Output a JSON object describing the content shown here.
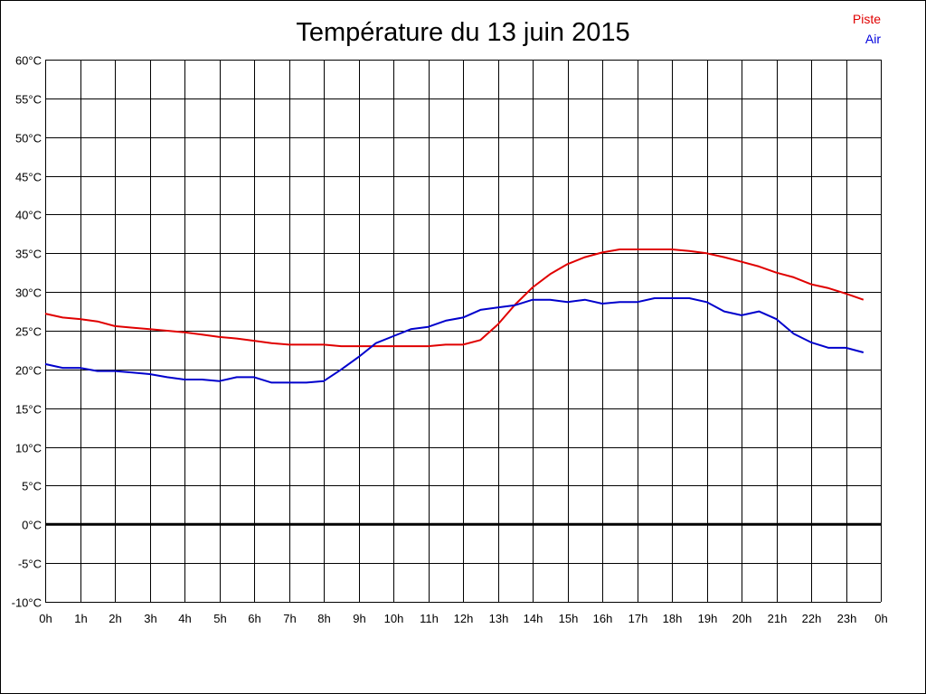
{
  "chart_data": {
    "type": "line",
    "title": "Température du 13 juin 2015",
    "xlabel": "",
    "ylabel": "",
    "x_tick_labels": [
      "0h",
      "1h",
      "2h",
      "3h",
      "4h",
      "5h",
      "6h",
      "7h",
      "8h",
      "9h",
      "10h",
      "11h",
      "12h",
      "13h",
      "14h",
      "15h",
      "16h",
      "17h",
      "18h",
      "19h",
      "20h",
      "21h",
      "22h",
      "23h",
      "0h"
    ],
    "y_tick_labels": [
      "60°C",
      "55°C",
      "50°C",
      "45°C",
      "40°C",
      "35°C",
      "30°C",
      "25°C",
      "20°C",
      "15°C",
      "10°C",
      "5°C",
      "0°C",
      "-5°C",
      "-10°C"
    ],
    "xlim": [
      0,
      24
    ],
    "ylim": [
      -10,
      60
    ],
    "grid": true,
    "legend_position": "top-right",
    "x": [
      0,
      0.5,
      1,
      1.5,
      2,
      2.5,
      3,
      3.5,
      4,
      4.5,
      5,
      5.5,
      6,
      6.5,
      7,
      7.5,
      8,
      8.5,
      9,
      9.5,
      10,
      10.5,
      11,
      11.5,
      12,
      12.5,
      13,
      13.5,
      14,
      14.5,
      15,
      15.5,
      16,
      16.5,
      17,
      17.5,
      18,
      18.5,
      19,
      19.5,
      20,
      20.5,
      21,
      21.5,
      22,
      22.5,
      23,
      23.5
    ],
    "series": [
      {
        "name": "Piste",
        "color": "#e00000",
        "values": [
          27.2,
          26.7,
          26.5,
          26.2,
          25.6,
          25.4,
          25.2,
          25.0,
          24.8,
          24.5,
          24.2,
          24.0,
          23.7,
          23.4,
          23.2,
          23.2,
          23.2,
          23.0,
          23.0,
          23.0,
          23.0,
          23.0,
          23.0,
          23.2,
          23.2,
          23.8,
          25.8,
          28.4,
          30.6,
          32.3,
          33.6,
          34.5,
          35.1,
          35.5,
          35.5,
          35.5,
          35.5,
          35.3,
          35.0,
          34.5,
          33.9,
          33.3,
          32.5,
          31.9,
          31.0,
          30.5,
          29.8,
          29.0
        ]
      },
      {
        "name": "Air",
        "color": "#0000cc",
        "values": [
          20.7,
          20.2,
          20.2,
          19.8,
          19.8,
          19.6,
          19.4,
          19.0,
          18.7,
          18.7,
          18.5,
          19.0,
          19.0,
          18.3,
          18.3,
          18.3,
          18.5,
          20.0,
          21.6,
          23.4,
          24.3,
          25.2,
          25.5,
          26.3,
          26.7,
          27.7,
          28.0,
          28.3,
          29.0,
          29.0,
          28.7,
          29.0,
          28.5,
          28.7,
          28.7,
          29.2,
          29.2,
          29.2,
          28.7,
          27.5,
          27.0,
          27.5,
          26.5,
          24.6,
          23.5,
          22.8,
          22.8,
          22.2
        ]
      }
    ]
  }
}
